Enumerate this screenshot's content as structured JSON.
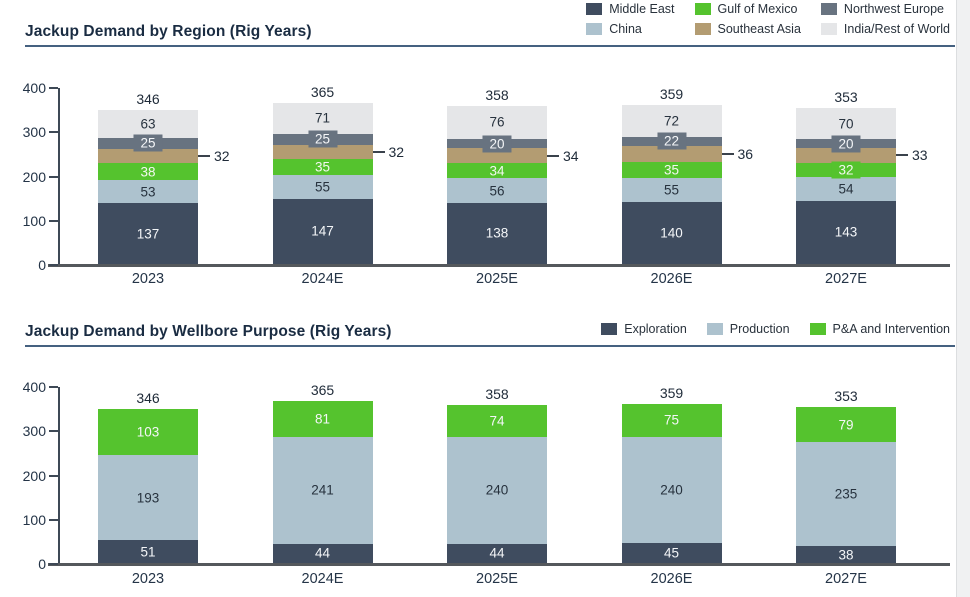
{
  "chart_data": [
    {
      "type": "bar",
      "stacked": true,
      "title": "Jackup Demand by Region (Rig Years)",
      "categories": [
        "2023",
        "2024E",
        "2025E",
        "2026E",
        "2027E"
      ],
      "series": [
        {
          "name": "Middle East",
          "color": "#3f4c5f",
          "label_color": "#f4f6f8",
          "values": [
            137,
            147,
            138,
            140,
            143
          ]
        },
        {
          "name": "China",
          "color": "#adc2ce",
          "label_color": "#27323e",
          "values": [
            53,
            55,
            56,
            55,
            54
          ]
        },
        {
          "name": "Gulf of Mexico",
          "color": "#55c32e",
          "label_color": "#f2f8ef",
          "values": [
            38,
            35,
            34,
            35,
            32
          ]
        },
        {
          "name": "Southeast Asia",
          "color": "#b39c72",
          "label_color": "#27323e",
          "values": [
            32,
            32,
            34,
            36,
            33
          ],
          "label_outside": true
        },
        {
          "name": "Northwest Europe",
          "color": "#687380",
          "label_color": "#f4f6f8",
          "values": [
            25,
            25,
            20,
            22,
            20
          ]
        },
        {
          "name": "India/Rest of World",
          "color": "#e5e6e8",
          "label_color": "#27323e",
          "values": [
            63,
            71,
            76,
            72,
            70
          ]
        }
      ],
      "totals": [
        346,
        365,
        358,
        359,
        353
      ],
      "ylim": [
        0,
        400
      ],
      "yticks": [
        0,
        100,
        200,
        300,
        400
      ],
      "grid": false,
      "legend": {
        "position": "top-right",
        "rows": [
          [
            "Middle East",
            "Gulf of Mexico",
            "Northwest Europe"
          ],
          [
            "China",
            "Southeast Asia",
            "India/Rest of World"
          ]
        ]
      }
    },
    {
      "type": "bar",
      "stacked": true,
      "title": "Jackup Demand by Wellbore Purpose (Rig Years)",
      "categories": [
        "2023",
        "2024E",
        "2025E",
        "2026E",
        "2027E"
      ],
      "series": [
        {
          "name": "Exploration",
          "color": "#3f4c5f",
          "label_color": "#f4f6f8",
          "values": [
            51,
            44,
            44,
            45,
            38
          ]
        },
        {
          "name": "Production",
          "color": "#adc2ce",
          "label_color": "#27323e",
          "values": [
            193,
            241,
            240,
            240,
            235
          ]
        },
        {
          "name": "P&A and Intervention",
          "color": "#55c32e",
          "label_color": "#f4f6f8",
          "values": [
            103,
            81,
            74,
            75,
            79
          ]
        }
      ],
      "totals": [
        346,
        365,
        358,
        359,
        353
      ],
      "ylim": [
        0,
        400
      ],
      "yticks": [
        0,
        100,
        200,
        300,
        400
      ],
      "grid": false,
      "legend": {
        "position": "title-right",
        "rows": [
          [
            "Exploration",
            "Production",
            "P&A and Intervention"
          ]
        ]
      }
    }
  ],
  "colors": {
    "title_text": "#1a2c42",
    "axis_text": "#243447",
    "total_text": "#1e2a38",
    "header_rule": "#456180",
    "y_axis_line": "#3e4956",
    "x_axis_line": "#54585c",
    "page_edge": "#f0f1f2"
  }
}
